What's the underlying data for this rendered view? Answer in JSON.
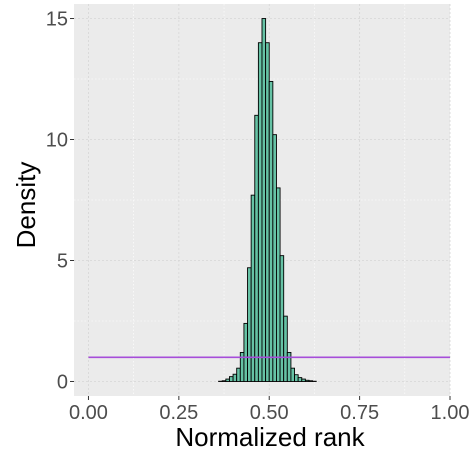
{
  "chart_data": {
    "type": "bar",
    "subtype": "histogram",
    "xlabel": "Normalized rank",
    "ylabel": "Density",
    "xlim": [
      -0.04,
      1.0
    ],
    "ylim": [
      -0.6,
      15.6
    ],
    "x_ticks": [
      0.0,
      0.25,
      0.5,
      0.75,
      1.0
    ],
    "x_tick_labels": [
      "0.00",
      "0.25",
      "0.50",
      "0.75",
      "1.00"
    ],
    "y_ticks": [
      0,
      5,
      10,
      15
    ],
    "y_tick_labels": [
      "0",
      "5",
      "10",
      "15"
    ],
    "grid": true,
    "panel_background": "#ebebeb",
    "bin_width": 0.01,
    "bar_fill": "#66c2a5",
    "bar_outline": "#000000",
    "bins": {
      "x_start": [
        0.0,
        0.01,
        0.02,
        0.03,
        0.04,
        0.05,
        0.06,
        0.07,
        0.08,
        0.09,
        0.1,
        0.11,
        0.12,
        0.13,
        0.14,
        0.15,
        0.16,
        0.17,
        0.18,
        0.19,
        0.2,
        0.21,
        0.22,
        0.23,
        0.24,
        0.25,
        0.26,
        0.27,
        0.28,
        0.29,
        0.3,
        0.31,
        0.32,
        0.33,
        0.34,
        0.35,
        0.36,
        0.37,
        0.38,
        0.39,
        0.4,
        0.41,
        0.42,
        0.43,
        0.44,
        0.45,
        0.46,
        0.47,
        0.48,
        0.49,
        0.5,
        0.51,
        0.52,
        0.53,
        0.54,
        0.55,
        0.56,
        0.57,
        0.58,
        0.59,
        0.6,
        0.61,
        0.62,
        0.63,
        0.64,
        0.65,
        0.66,
        0.67,
        0.68,
        0.69,
        0.7,
        0.71,
        0.72,
        0.73,
        0.74,
        0.75,
        0.76,
        0.77,
        0.78,
        0.79,
        0.8,
        0.81,
        0.82,
        0.83,
        0.84,
        0.85,
        0.86,
        0.87,
        0.88,
        0.89,
        0.9,
        0.91,
        0.92,
        0.93,
        0.94,
        0.95,
        0.96,
        0.97,
        0.98,
        0.99
      ],
      "density": [
        0,
        0,
        0,
        0,
        0,
        0,
        0,
        0,
        0,
        0,
        0,
        0,
        0,
        0,
        0,
        0,
        0,
        0,
        0,
        0,
        0,
        0,
        0,
        0,
        0,
        0,
        0,
        0,
        0,
        0,
        0,
        0,
        0,
        0,
        0,
        0,
        0.01,
        0.03,
        0.1,
        0.2,
        0.3,
        0.55,
        1.2,
        2.4,
        4.7,
        7.7,
        11.0,
        14.0,
        15.0,
        14.0,
        12.4,
        10.2,
        8.0,
        5.2,
        2.7,
        1.2,
        0.55,
        0.28,
        0.16,
        0.1,
        0.05,
        0.03,
        0.01,
        0,
        0,
        0,
        0,
        0,
        0,
        0,
        0,
        0,
        0,
        0,
        0,
        0,
        0,
        0,
        0,
        0,
        0,
        0,
        0,
        0,
        0,
        0,
        0,
        0,
        0,
        0,
        0,
        0,
        0,
        0,
        0,
        0,
        0,
        0,
        0,
        0
      ]
    },
    "reference_line": {
      "y": 1,
      "x_range": [
        0.0,
        1.0
      ],
      "color": "#a64dd9"
    }
  }
}
